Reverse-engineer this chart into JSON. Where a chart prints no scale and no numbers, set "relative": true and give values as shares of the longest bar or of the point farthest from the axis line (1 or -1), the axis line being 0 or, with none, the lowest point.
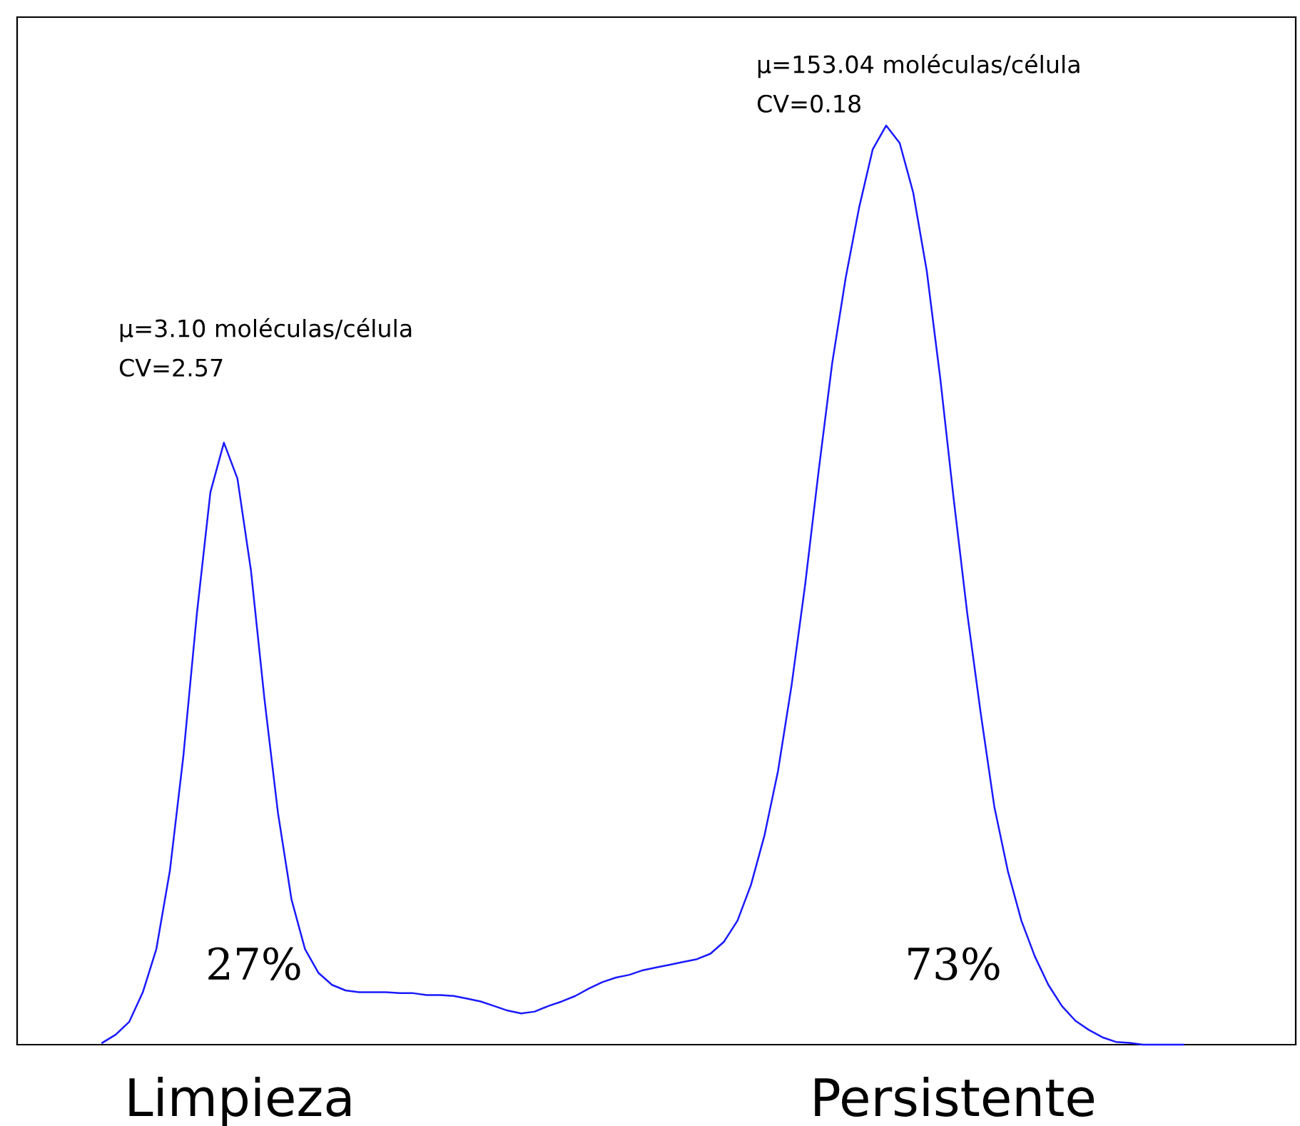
{
  "chart_data": {
    "type": "line",
    "relative": true,
    "categories": [
      null,
      null,
      null,
      null,
      null,
      null,
      null,
      null,
      null,
      null,
      null,
      null,
      null,
      null,
      null,
      null,
      null,
      null,
      null,
      null,
      null,
      null,
      null,
      null,
      null,
      null,
      null,
      null,
      null,
      null,
      null,
      null,
      null,
      null,
      null,
      null,
      null,
      null,
      null,
      null,
      null,
      null,
      null,
      null,
      null,
      null,
      null,
      null,
      null,
      null,
      null,
      null,
      null,
      null,
      null,
      null,
      null,
      null,
      null,
      null,
      null,
      null,
      null,
      null,
      null,
      null,
      null,
      null,
      null,
      null,
      null,
      null,
      null,
      null,
      null,
      null,
      null,
      null,
      null,
      null,
      null
    ],
    "series": [
      {
        "color": "#1a1aff",
        "values": [
          0.002,
          0.011,
          0.025,
          0.057,
          0.104,
          0.189,
          0.314,
          0.469,
          0.601,
          0.655,
          0.616,
          0.516,
          0.376,
          0.252,
          0.158,
          0.104,
          0.078,
          0.065,
          0.059,
          0.057,
          0.057,
          0.057,
          0.056,
          0.056,
          0.054,
          0.054,
          0.053,
          0.05,
          0.047,
          0.042,
          0.037,
          0.034,
          0.036,
          0.042,
          0.047,
          0.053,
          0.061,
          0.068,
          0.073,
          0.076,
          0.081,
          0.084,
          0.087,
          0.09,
          0.093,
          0.099,
          0.112,
          0.135,
          0.174,
          0.228,
          0.298,
          0.391,
          0.5,
          0.624,
          0.741,
          0.834,
          0.911,
          0.974,
          1,
          0.981,
          0.927,
          0.842,
          0.725,
          0.593,
          0.469,
          0.36,
          0.259,
          0.189,
          0.135,
          0.096,
          0.065,
          0.042,
          0.026,
          0.016,
          0.008,
          0.003,
          0.002,
          0,
          0,
          0,
          0
        ]
      }
    ],
    "annotations": [
      "μ=3.10 moléculas/célula\nCV=2.57",
      "μ=153.04 moléculas/célula\nCV=0.18",
      "27%",
      "73%",
      "Limpieza",
      "Persistente"
    ],
    "marker": "none",
    "line_style": "solid",
    "grid": false,
    "tick_labels": false
  }
}
